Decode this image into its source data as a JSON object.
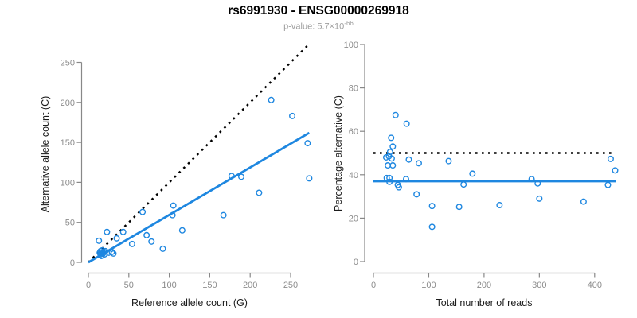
{
  "header": {
    "title": "rs6991930 - ENSG00000269918",
    "subtitle_text": "p-value: 5.7×10",
    "subtitle_exponent": "-66"
  },
  "colors": {
    "point_blue": "#1E87E0",
    "line_blue": "#1E87E0",
    "dotted_black": "#000000",
    "axis_gray": "#888888",
    "tick_label_gray": "#8c8c8c",
    "title_black": "#000000",
    "subtitle_gray": "#9e9e9e"
  },
  "chart_data": [
    {
      "type": "scatter",
      "panel": "left",
      "xlabel": "Reference allele count (G)",
      "ylabel": "Alternative allele count (C)",
      "xlim": [
        0,
        275
      ],
      "ylim": [
        0,
        275
      ],
      "xticks": [
        0,
        50,
        100,
        150,
        200,
        250
      ],
      "yticks": [
        0,
        50,
        100,
        150,
        200,
        250
      ],
      "grid": false,
      "legend": "none",
      "points": [
        [
          13,
          27
        ],
        [
          23,
          38
        ],
        [
          35,
          30
        ],
        [
          43,
          38
        ],
        [
          54,
          23
        ],
        [
          29,
          13
        ],
        [
          67,
          63
        ],
        [
          72,
          34
        ],
        [
          78,
          26
        ],
        [
          92,
          17
        ],
        [
          104,
          59
        ],
        [
          105,
          71
        ],
        [
          116,
          40
        ],
        [
          167,
          59
        ],
        [
          177,
          108
        ],
        [
          189,
          107
        ],
        [
          211,
          87
        ],
        [
          226,
          203
        ],
        [
          252,
          183
        ],
        [
          271,
          149
        ],
        [
          273,
          105
        ],
        [
          14,
          12
        ],
        [
          15,
          10
        ],
        [
          15,
          14
        ],
        [
          16,
          8
        ],
        [
          16,
          12
        ],
        [
          17,
          15
        ],
        [
          18,
          11
        ],
        [
          19,
          13
        ],
        [
          20,
          10
        ],
        [
          21,
          14
        ],
        [
          25,
          12
        ],
        [
          31,
          11
        ]
      ],
      "lines": [
        {
          "name": "identity-line",
          "style": "dotted",
          "color": "#000000",
          "from": [
            0,
            0
          ],
          "to": [
            272,
            272
          ]
        },
        {
          "name": "regression-line",
          "style": "solid",
          "color": "#1E87E0",
          "from": [
            0,
            0
          ],
          "to": [
            273,
            162
          ]
        }
      ]
    },
    {
      "type": "scatter",
      "panel": "right",
      "xlabel": "Total number of reads",
      "ylabel": "Percentage alternative (C)",
      "xlim": [
        0,
        440
      ],
      "ylim": [
        0,
        100
      ],
      "xticks": [
        0,
        100,
        200,
        300,
        400
      ],
      "yticks": [
        0,
        20,
        40,
        60,
        80,
        100
      ],
      "grid": false,
      "legend": "none",
      "points": [
        [
          40,
          67.5
        ],
        [
          60,
          63.5
        ],
        [
          32,
          57
        ],
        [
          35,
          53
        ],
        [
          30,
          50.5
        ],
        [
          23,
          48
        ],
        [
          28,
          48.5
        ],
        [
          33,
          47.5
        ],
        [
          64,
          47
        ],
        [
          82,
          45.3
        ],
        [
          26,
          44.3
        ],
        [
          35,
          44.3
        ],
        [
          136,
          46.3
        ],
        [
          179,
          40.5
        ],
        [
          429,
          47.3
        ],
        [
          437,
          42
        ],
        [
          24,
          38.5
        ],
        [
          29,
          38.5
        ],
        [
          59,
          38
        ],
        [
          29,
          36.7
        ],
        [
          44,
          35.3
        ],
        [
          46,
          34.2
        ],
        [
          163,
          35.5
        ],
        [
          286,
          38
        ],
        [
          297,
          36
        ],
        [
          424,
          35.3
        ],
        [
          78,
          31
        ],
        [
          106,
          25.6
        ],
        [
          155,
          25.2
        ],
        [
          228,
          26
        ],
        [
          300,
          29
        ],
        [
          380,
          27.6
        ],
        [
          106,
          16
        ]
      ],
      "lines": [
        {
          "name": "expected-50pct-line",
          "style": "dotted",
          "color": "#000000",
          "from": [
            0,
            50
          ],
          "to": [
            438,
            50
          ]
        },
        {
          "name": "mean-percentage-line",
          "style": "solid",
          "color": "#1E87E0",
          "from": [
            0,
            37
          ],
          "to": [
            439,
            37
          ]
        }
      ]
    }
  ]
}
